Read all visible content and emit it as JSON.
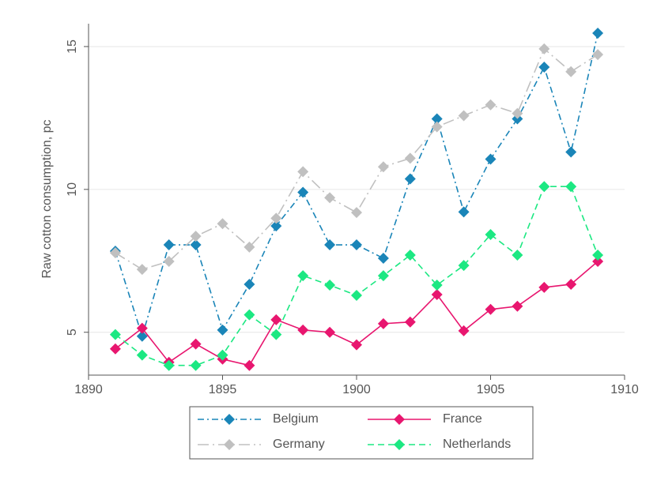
{
  "chart_data": {
    "type": "line",
    "y_label": "Raw cotton consumption, pc",
    "x": [
      1891,
      1892,
      1893,
      1894,
      1895,
      1896,
      1897,
      1898,
      1899,
      1900,
      1901,
      1902,
      1903,
      1904,
      1905,
      1906,
      1907,
      1908,
      1909
    ],
    "series": [
      {
        "name": "Belgium",
        "color": "#1a85b8",
        "dash": "dashdot",
        "values": [
          7.84,
          4.86,
          8.06,
          8.06,
          5.08,
          6.68,
          8.72,
          9.9,
          8.06,
          8.06,
          7.59,
          10.37,
          12.47,
          9.21,
          11.06,
          12.47,
          14.28,
          11.31,
          15.47
        ]
      },
      {
        "name": "France",
        "color": "#e8166f",
        "dash": "solid",
        "values": [
          4.42,
          5.14,
          3.95,
          4.59,
          4.06,
          3.84,
          5.44,
          5.08,
          5.0,
          4.56,
          5.3,
          5.36,
          6.32,
          5.05,
          5.8,
          5.91,
          6.57,
          6.68,
          7.48
        ]
      },
      {
        "name": "Germany",
        "color": "#c0c0c0",
        "dash": "longdashdot",
        "values": [
          7.78,
          7.2,
          7.48,
          8.36,
          8.8,
          7.98,
          8.99,
          10.62,
          9.71,
          9.19,
          10.79,
          11.09,
          12.19,
          12.58,
          12.96,
          12.66,
          14.92,
          14.12,
          14.72
        ]
      },
      {
        "name": "Netherlands",
        "color": "#1ce882",
        "dash": "dashed",
        "values": [
          4.92,
          4.2,
          3.84,
          3.84,
          4.2,
          5.61,
          4.92,
          6.98,
          6.65,
          6.29,
          6.98,
          7.7,
          6.65,
          7.34,
          8.42,
          7.7,
          10.1,
          10.1,
          7.7
        ]
      }
    ],
    "xlim": [
      1890,
      1910
    ],
    "xticks": [
      1890,
      1895,
      1900,
      1905,
      1910
    ],
    "ylim": [
      3.5,
      15.8
    ],
    "yticks": [
      5,
      10,
      15
    ],
    "grid": true,
    "legend": "bottom"
  }
}
